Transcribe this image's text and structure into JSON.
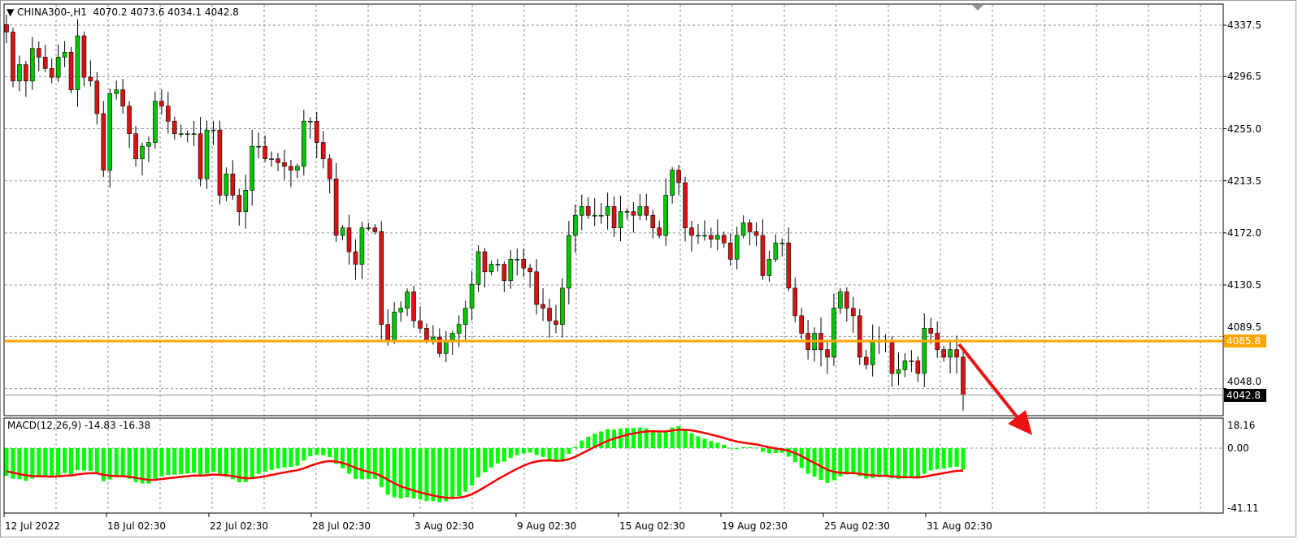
{
  "header": {
    "symbol": "CHINA300-,H1",
    "ohlc": "4070.2 4073.6 4034.1 4042.8"
  },
  "chart_data": {
    "type": "candlestick",
    "price_axis": {
      "ticks": [
        "4337.5",
        "4296.5",
        "4255.0",
        "4213.5",
        "4172.0",
        "4130.5",
        "4089.5",
        "4048.0"
      ],
      "range": [
        4020,
        4350
      ]
    },
    "time_axis": {
      "ticks": [
        "12 Jul 2022",
        "18 Jul 02:30",
        "22 Jul 02:30",
        "28 Jul 02:30",
        "3 Aug 02:30",
        "9 Aug 02:30",
        "15 Aug 02:30",
        "19 Aug 02:30",
        "25 Aug 02:30",
        "31 Aug 02:30"
      ]
    },
    "closes": [
      4332,
      4293,
      4306,
      4293,
      4319,
      4312,
      4303,
      4296,
      4312,
      4316,
      4286,
      4329,
      4296,
      4293,
      4267,
      4222,
      4283,
      4286,
      4273,
      4251,
      4231,
      4241,
      4244,
      4277,
      4273,
      4261,
      4251,
      4251,
      4251,
      4251,
      4215,
      4254,
      4254,
      4202,
      4219,
      4202,
      4189,
      4206,
      4241,
      4241,
      4231,
      4231,
      4228,
      4225,
      4222,
      4225,
      4261,
      4261,
      4244,
      4231,
      4215,
      4170,
      4176,
      4157,
      4147,
      4176,
      4176,
      4173,
      4099,
      4086,
      4109,
      4112,
      4125,
      4102,
      4096,
      4086,
      4089,
      4076,
      4086,
      4092,
      4099,
      4112,
      4131,
      4157,
      4141,
      4147,
      4147,
      4134,
      4151,
      4151,
      4144,
      4141,
      4115,
      4112,
      4102,
      4099,
      4128,
      4170,
      4186,
      4193,
      4186,
      4186,
      4186,
      4193,
      4176,
      4189,
      4189,
      4186,
      4193,
      4186,
      4176,
      4170,
      4202,
      4222,
      4212,
      4176,
      4170,
      4170,
      4170,
      4167,
      4170,
      4164,
      4151,
      4170,
      4180,
      4173,
      4170,
      4138,
      4151,
      4164,
      4164,
      4128,
      4106,
      4092,
      4079,
      4092,
      4079,
      4073,
      4112,
      4125,
      4112,
      4106,
      4073,
      4067,
      4086,
      4086,
      4086,
      4060,
      4063,
      4070,
      4070,
      4060,
      4096,
      4092,
      4079,
      4073,
      4079,
      4073,
      4042.8
    ],
    "horizontal_line": {
      "value": "4085.8",
      "color": "#ffa500"
    },
    "current_price": "4042.8",
    "bull_color": "#00c800",
    "bear_color": "#dd1111",
    "annotation": {
      "type": "arrow",
      "color": "#ee1111",
      "direction": "down-right"
    },
    "macd": {
      "title": "MACD(12,26,9) -14.83 -16.38",
      "ticks": [
        "18.16",
        "0.00",
        "-41.11"
      ],
      "range": [
        -41.11,
        18.16
      ],
      "histogram_color": "#00ff00",
      "signal_color": "#ff0000"
    }
  }
}
